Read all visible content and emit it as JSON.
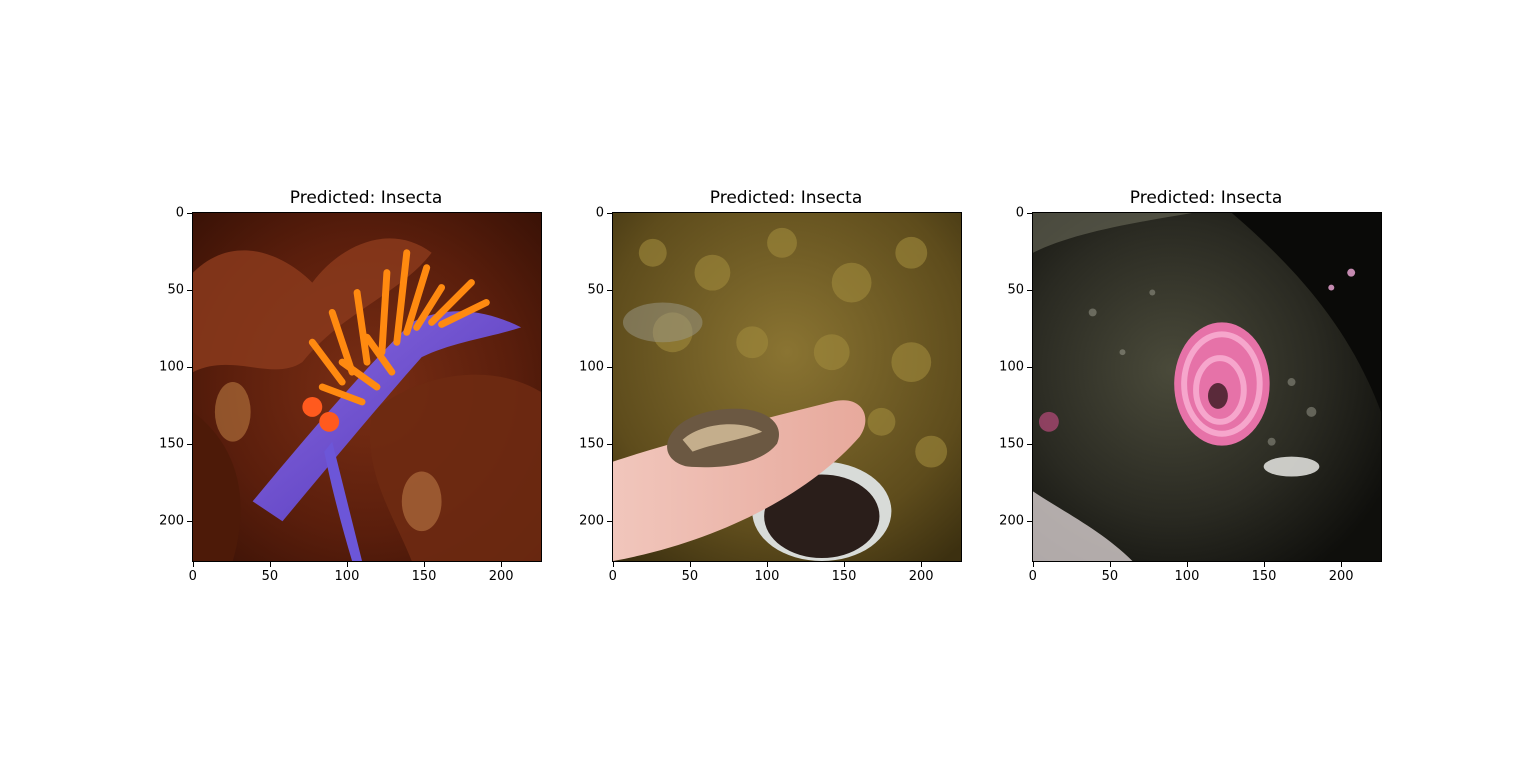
{
  "panels": [
    {
      "title": "Predicted: Insecta",
      "image_subject": "purple nudibranch with orange cerata on brown kelp",
      "x_ticks": [
        "0",
        "50",
        "100",
        "150",
        "200"
      ],
      "y_ticks": [
        "0",
        "50",
        "100",
        "150",
        "200"
      ]
    },
    {
      "title": "Predicted: Insecta",
      "image_subject": "small shell resting on a fingertip over mossy rocks",
      "x_ticks": [
        "0",
        "50",
        "100",
        "150",
        "200"
      ],
      "y_ticks": [
        "0",
        "50",
        "100",
        "150",
        "200"
      ]
    },
    {
      "title": "Predicted: Insecta",
      "image_subject": "pink coiled sea snail egg ribbon on dark wet rock",
      "x_ticks": [
        "0",
        "50",
        "100",
        "150",
        "200"
      ],
      "y_ticks": [
        "0",
        "50",
        "100",
        "150",
        "200"
      ]
    }
  ],
  "colors": {
    "background": "#ffffff",
    "axis": "#000000"
  }
}
